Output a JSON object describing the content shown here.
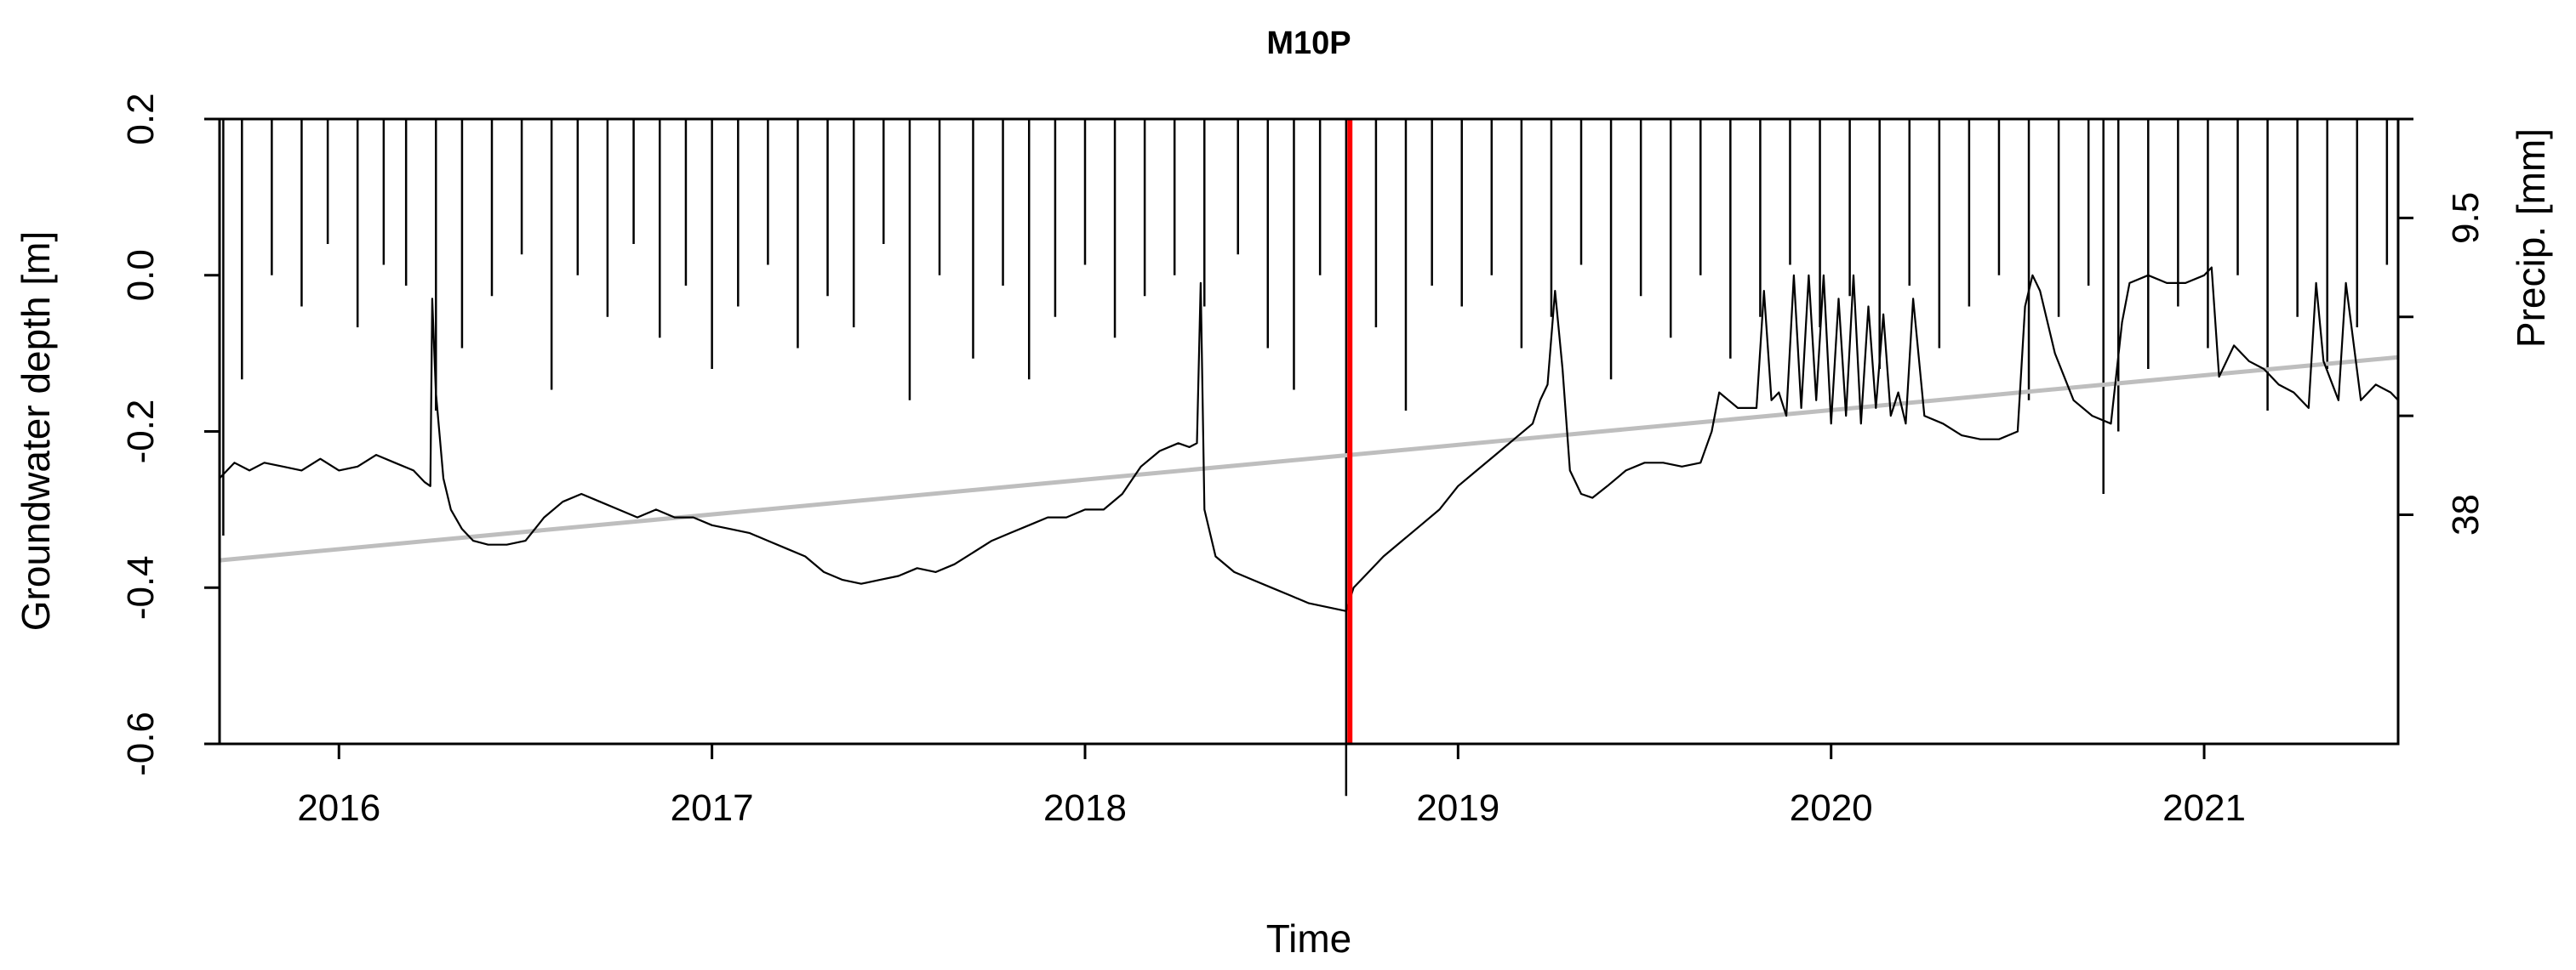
{
  "chart_data": {
    "type": "line",
    "title": "M10P",
    "xlabel": "Time",
    "ylabel": "Groundwater depth [m]",
    "y2label": "Precip. [mm]",
    "xlim": [
      2015.68,
      2021.52
    ],
    "ylim": [
      -0.6,
      0.2
    ],
    "x_ticks": [
      2016,
      2017,
      2018,
      2019,
      2020,
      2021
    ],
    "y_ticks": [
      -0.6,
      -0.4,
      -0.2,
      0.0,
      0.2
    ],
    "y2_ticks": [
      9.5,
      38
    ],
    "y2lim": [
      0,
      60
    ],
    "grid": false,
    "legend": "none",
    "colors": {
      "groundwater": "#000000",
      "trend": "#bebebe",
      "event": "#ff0000",
      "precip": "#000000"
    },
    "event_x": 2018.71,
    "trend": {
      "x": [
        2015.68,
        2021.52
      ],
      "y": [
        -0.365,
        -0.105
      ]
    },
    "series": [
      {
        "x": [
          2015.68,
          2015.72,
          2015.76,
          2015.8,
          2015.85,
          2015.9,
          2015.95,
          2016.0,
          2016.05,
          2016.1,
          2016.15,
          2016.2,
          2016.23,
          2016.245,
          2016.25,
          2016.26,
          2016.28,
          2016.3,
          2016.33,
          2016.36,
          2016.4,
          2016.45,
          2016.5,
          2016.55,
          2016.6,
          2016.65,
          2016.7,
          2016.75,
          2016.8,
          2016.85,
          2016.9,
          2016.95,
          2017.0,
          2017.05,
          2017.1,
          2017.15,
          2017.2,
          2017.25,
          2017.3,
          2017.35,
          2017.4,
          2017.45,
          2017.5,
          2017.55,
          2017.6,
          2017.65,
          2017.7,
          2017.75,
          2017.8,
          2017.85,
          2017.9,
          2017.95,
          2018.0,
          2018.05,
          2018.1,
          2018.15,
          2018.2,
          2018.25,
          2018.28,
          2018.3,
          2018.31,
          2018.32,
          2018.35,
          2018.4,
          2018.45,
          2018.5,
          2018.55,
          2018.6,
          2018.65,
          2018.7,
          2018.72,
          2018.75,
          2018.8,
          2018.85,
          2018.9,
          2018.95,
          2019.0,
          2019.05,
          2019.1,
          2019.15,
          2019.2,
          2019.22,
          2019.24,
          2019.26,
          2019.28,
          2019.3,
          2019.33,
          2019.36,
          2019.4,
          2019.45,
          2019.5,
          2019.55,
          2019.6,
          2019.65,
          2019.68,
          2019.7,
          2019.75,
          2019.8,
          2019.82,
          2019.84,
          2019.86,
          2019.88,
          2019.9,
          2019.92,
          2019.94,
          2019.96,
          2019.98,
          2020.0,
          2020.02,
          2020.04,
          2020.06,
          2020.08,
          2020.1,
          2020.12,
          2020.14,
          2020.16,
          2020.18,
          2020.2,
          2020.22,
          2020.25,
          2020.3,
          2020.35,
          2020.4,
          2020.45,
          2020.5,
          2020.52,
          2020.54,
          2020.56,
          2020.6,
          2020.65,
          2020.7,
          2020.75,
          2020.78,
          2020.8,
          2020.85,
          2020.9,
          2020.95,
          2021.0,
          2021.02,
          2021.04,
          2021.08,
          2021.12,
          2021.16,
          2021.2,
          2021.24,
          2021.28,
          2021.3,
          2021.32,
          2021.36,
          2021.38,
          2021.42,
          2021.46,
          2021.5,
          2021.52
        ],
        "values": [
          -0.26,
          -0.24,
          -0.25,
          -0.24,
          -0.245,
          -0.25,
          -0.235,
          -0.25,
          -0.245,
          -0.23,
          -0.24,
          -0.25,
          -0.265,
          -0.27,
          -0.03,
          -0.15,
          -0.26,
          -0.3,
          -0.325,
          -0.34,
          -0.345,
          -0.345,
          -0.34,
          -0.31,
          -0.29,
          -0.28,
          -0.29,
          -0.3,
          -0.31,
          -0.3,
          -0.31,
          -0.31,
          -0.32,
          -0.325,
          -0.33,
          -0.34,
          -0.35,
          -0.36,
          -0.38,
          -0.39,
          -0.395,
          -0.39,
          -0.385,
          -0.375,
          -0.38,
          -0.37,
          -0.355,
          -0.34,
          -0.33,
          -0.32,
          -0.31,
          -0.31,
          -0.3,
          -0.3,
          -0.28,
          -0.245,
          -0.225,
          -0.215,
          -0.22,
          -0.215,
          -0.01,
          -0.3,
          -0.36,
          -0.38,
          -0.39,
          -0.4,
          -0.41,
          -0.42,
          -0.425,
          -0.43,
          -0.4,
          -0.385,
          -0.36,
          -0.34,
          -0.32,
          -0.3,
          -0.27,
          -0.25,
          -0.23,
          -0.21,
          -0.19,
          -0.16,
          -0.14,
          -0.02,
          -0.12,
          -0.25,
          -0.28,
          -0.285,
          -0.27,
          -0.25,
          -0.24,
          -0.24,
          -0.245,
          -0.24,
          -0.2,
          -0.15,
          -0.17,
          -0.17,
          -0.02,
          -0.16,
          -0.15,
          -0.18,
          0.0,
          -0.17,
          0.0,
          -0.16,
          0.0,
          -0.19,
          -0.03,
          -0.18,
          0.0,
          -0.19,
          -0.04,
          -0.17,
          -0.05,
          -0.18,
          -0.15,
          -0.19,
          -0.03,
          -0.18,
          -0.19,
          -0.205,
          -0.21,
          -0.21,
          -0.2,
          -0.04,
          0.0,
          -0.02,
          -0.1,
          -0.16,
          -0.18,
          -0.19,
          -0.06,
          -0.01,
          0.0,
          -0.01,
          -0.01,
          0.0,
          0.01,
          -0.13,
          -0.09,
          -0.11,
          -0.12,
          -0.14,
          -0.15,
          -0.17,
          -0.01,
          -0.11,
          -0.16,
          -0.01,
          -0.16,
          -0.14,
          -0.15,
          -0.16
        ]
      }
    ],
    "precip_series": {
      "x": [
        2015.69,
        2015.74,
        2015.82,
        2015.9,
        2015.97,
        2016.05,
        2016.12,
        2016.18,
        2016.26,
        2016.33,
        2016.41,
        2016.49,
        2016.57,
        2016.64,
        2016.72,
        2016.79,
        2016.86,
        2016.93,
        2017.0,
        2017.07,
        2017.15,
        2017.23,
        2017.31,
        2017.38,
        2017.46,
        2017.53,
        2017.61,
        2017.7,
        2017.78,
        2017.85,
        2017.92,
        2018.0,
        2018.08,
        2018.16,
        2018.24,
        2018.32,
        2018.41,
        2018.49,
        2018.56,
        2018.63,
        2018.7,
        2018.78,
        2018.86,
        2018.93,
        2019.01,
        2019.09,
        2019.17,
        2019.25,
        2019.33,
        2019.41,
        2019.49,
        2019.57,
        2019.65,
        2019.73,
        2019.81,
        2019.89,
        2019.97,
        2020.05,
        2020.13,
        2020.21,
        2020.29,
        2020.37,
        2020.45,
        2020.53,
        2020.61,
        2020.69,
        2020.73,
        2020.77,
        2020.85,
        2020.93,
        2021.01,
        2021.09,
        2021.17,
        2021.25,
        2021.33,
        2021.41,
        2021.49
      ],
      "values": [
        40,
        25,
        15,
        18,
        12,
        20,
        14,
        16,
        28,
        22,
        17,
        13,
        26,
        15,
        19,
        12,
        21,
        16,
        24,
        18,
        14,
        22,
        17,
        20,
        12,
        27,
        15,
        23,
        16,
        25,
        19,
        14,
        21,
        17,
        15,
        18,
        13,
        22,
        26,
        15,
        65,
        20,
        28,
        16,
        18,
        15,
        22,
        19,
        14,
        25,
        17,
        21,
        15,
        23,
        19,
        14,
        20,
        17,
        24,
        16,
        22,
        18,
        15,
        27,
        19,
        16,
        36,
        30,
        24,
        18,
        22,
        15,
        28,
        19,
        24,
        20,
        14
      ]
    }
  }
}
